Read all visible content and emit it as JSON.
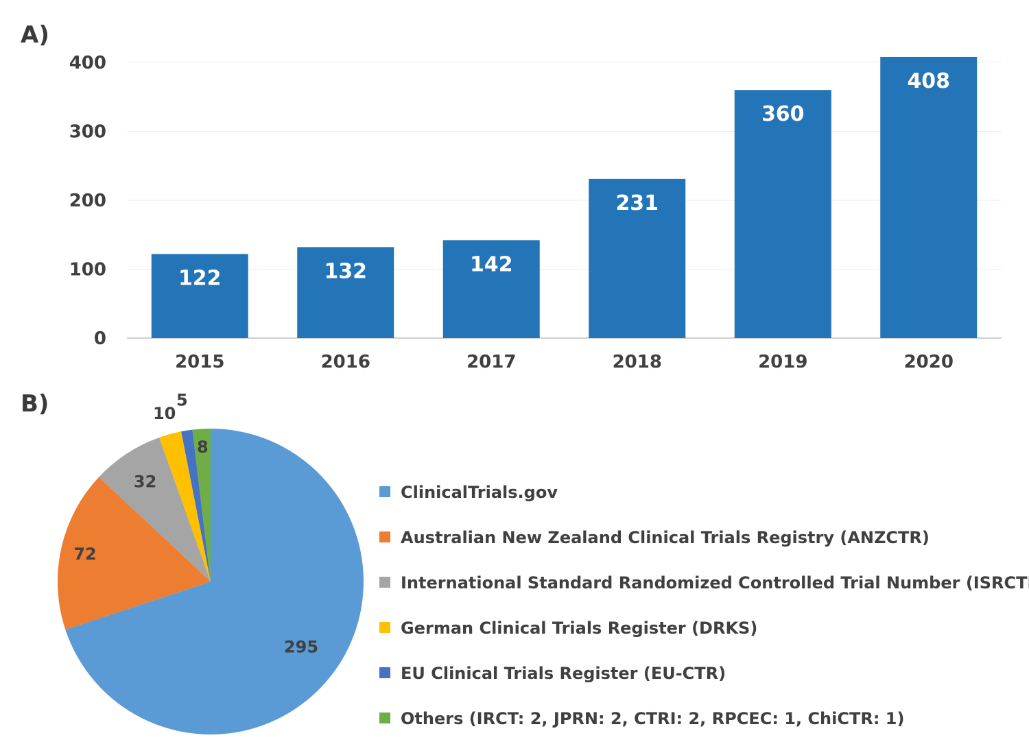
{
  "panels": {
    "a_label": "A)",
    "b_label": "B)"
  },
  "chart_data": [
    {
      "type": "bar",
      "categories": [
        "2015",
        "2016",
        "2017",
        "2018",
        "2019",
        "2020"
      ],
      "values": [
        122,
        132,
        142,
        231,
        360,
        408
      ],
      "ylim": [
        0,
        400
      ],
      "yticks": [
        "0",
        "100",
        "200",
        "300",
        "400"
      ],
      "bar_color": "#2474b8",
      "label_color": "#ffffff",
      "grid": true,
      "data_labels": true
    },
    {
      "type": "pie",
      "labels": [
        "ClinicalTrials.gov",
        "Australian New Zealand Clinical Trials Registry (ANZCTR)",
        "International Standard Randomized Controlled Trial Number (ISRCTN)",
        "German Clinical Trials Register (DRKS)",
        "EU Clinical Trials Register (EU-CTR)",
        "Others (IRCT: 2, JPRN: 2, CTRI: 2, RPCEC: 1, ChiCTR: 1)"
      ],
      "values": [
        295,
        72,
        32,
        10,
        5,
        8
      ],
      "colors": [
        "#5b9bd5",
        "#ed7d31",
        "#a5a5a5",
        "#ffc000",
        "#4472c4",
        "#70ad47"
      ],
      "legend_position": "right",
      "data_labels": true
    }
  ]
}
